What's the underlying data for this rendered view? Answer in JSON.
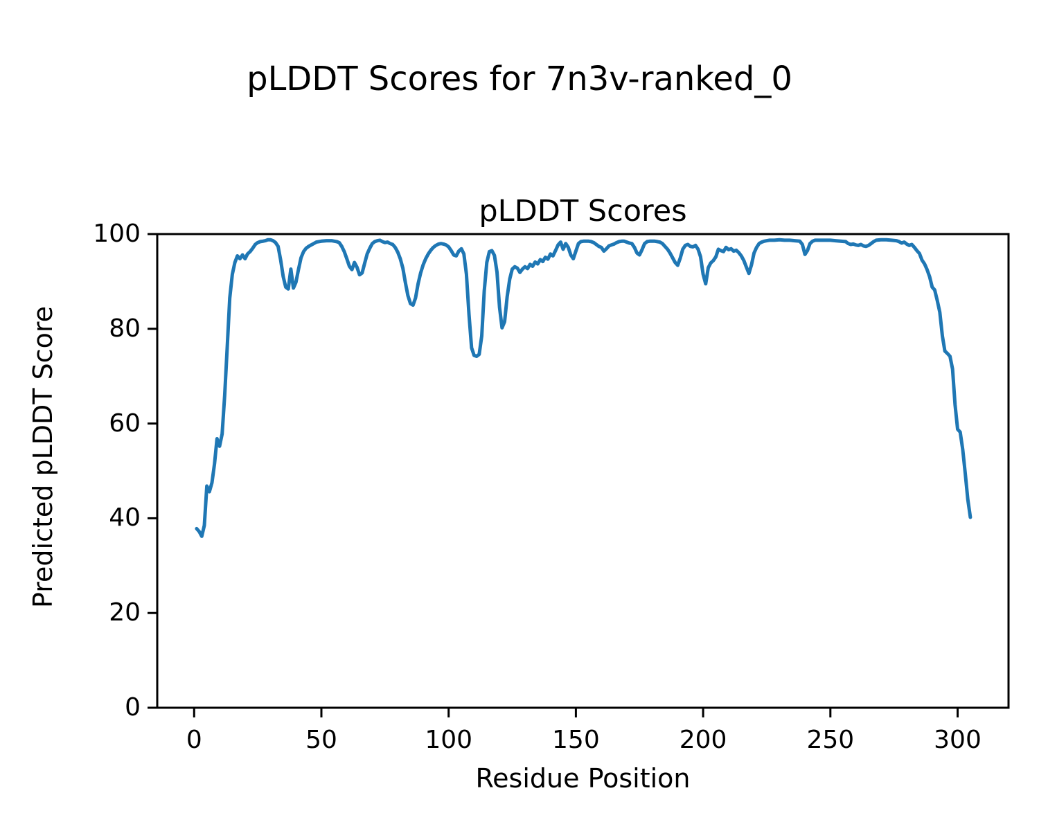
{
  "figure": {
    "suptitle": "pLDDT Scores for 7n3v-ranked_0",
    "axes_title": "pLDDT Scores",
    "xlabel": "Residue Position",
    "ylabel": "Predicted pLDDT Score"
  },
  "colors": {
    "line": "#1f77b4",
    "axis": "#000000",
    "background": "#ffffff"
  },
  "chart_data": {
    "type": "line",
    "title": "pLDDT Scores",
    "suptitle": "pLDDT Scores for 7n3v-ranked_0",
    "xlabel": "Residue Position",
    "ylabel": "Predicted pLDDT Score",
    "xlim": [
      -14.5,
      320
    ],
    "ylim": [
      0,
      100
    ],
    "x_ticks": [
      0,
      50,
      100,
      150,
      200,
      250,
      300
    ],
    "y_ticks": [
      0,
      20,
      40,
      60,
      80,
      100
    ],
    "grid": false,
    "legend": false,
    "line_color": "#1f77b4",
    "line_width": 5,
    "series": [
      {
        "name": "pLDDT",
        "x": [
          1,
          2,
          3,
          4,
          5,
          6,
          7,
          8,
          9,
          10,
          11,
          12,
          13,
          14,
          15,
          16,
          17,
          18,
          19,
          20,
          21,
          22,
          23,
          24,
          25,
          26,
          27,
          28,
          29,
          30,
          31,
          32,
          33,
          34,
          35,
          36,
          37,
          38,
          39,
          40,
          41,
          42,
          43,
          44,
          45,
          46,
          47,
          48,
          50,
          52,
          54,
          56,
          57,
          58,
          59,
          60,
          61,
          62,
          63,
          64,
          65,
          66,
          67,
          68,
          69,
          70,
          71,
          72,
          73,
          74,
          75,
          76,
          77,
          78,
          79,
          80,
          81,
          82,
          83,
          84,
          85,
          86,
          87,
          88,
          89,
          90,
          91,
          92,
          93,
          94,
          95,
          96,
          97,
          98,
          99,
          100,
          101,
          102,
          103,
          104,
          105,
          106,
          107,
          108,
          109,
          110,
          111,
          112,
          113,
          114,
          115,
          116,
          117,
          118,
          119,
          120,
          121,
          122,
          123,
          124,
          125,
          126,
          127,
          128,
          129,
          130,
          131,
          132,
          133,
          134,
          135,
          136,
          137,
          138,
          139,
          140,
          141,
          142,
          143,
          144,
          145,
          146,
          147,
          148,
          149,
          150,
          151,
          152,
          153,
          154,
          155,
          156,
          157,
          158,
          159,
          160,
          161,
          162,
          163,
          164,
          165,
          166,
          167,
          168,
          169,
          170,
          171,
          172,
          173,
          174,
          175,
          176,
          177,
          178,
          179,
          180,
          181,
          182,
          183,
          184,
          185,
          186,
          187,
          188,
          189,
          190,
          191,
          192,
          193,
          194,
          195,
          196,
          197,
          198,
          199,
          200,
          201,
          202,
          203,
          204,
          205,
          206,
          207,
          208,
          209,
          210,
          211,
          212,
          213,
          214,
          215,
          216,
          217,
          218,
          219,
          220,
          221,
          222,
          223,
          224,
          225,
          226,
          228,
          230,
          232,
          234,
          236,
          238,
          239,
          240,
          241,
          242,
          243,
          244,
          246,
          248,
          250,
          252,
          254,
          256,
          257,
          258,
          259,
          260,
          261,
          262,
          263,
          264,
          265,
          266,
          267,
          268,
          270,
          272,
          274,
          276,
          277,
          278,
          279,
          280,
          281,
          282,
          283,
          284,
          285,
          286,
          287,
          288,
          289,
          290,
          291,
          292,
          293,
          294,
          295,
          296,
          297,
          298,
          299,
          300,
          301,
          302,
          303,
          304,
          305
        ],
        "y": [
          37.8,
          37.2,
          36.2,
          38.5,
          46.8,
          45.6,
          47.5,
          51.5,
          56.8,
          55.2,
          57.8,
          66,
          76,
          86.5,
          91.5,
          94,
          95.4,
          94.8,
          95.6,
          94.8,
          95.8,
          96.3,
          97,
          97.8,
          98.2,
          98.4,
          98.5,
          98.6,
          98.8,
          98.8,
          98.6,
          98.2,
          97.4,
          94.5,
          91,
          88.8,
          88.4,
          92.6,
          88.6,
          89.8,
          92.5,
          95,
          96.3,
          97,
          97.4,
          97.7,
          98,
          98.3,
          98.5,
          98.6,
          98.6,
          98.4,
          98.2,
          97.4,
          96.3,
          94.8,
          93.2,
          92.5,
          94,
          93,
          91.4,
          91.8,
          93.8,
          95.8,
          97,
          98,
          98.4,
          98.6,
          98.7,
          98.4,
          98.2,
          98.3,
          98,
          97.8,
          97.2,
          96.2,
          94.8,
          92.8,
          89.8,
          87,
          85.3,
          85,
          86.5,
          89.5,
          91.8,
          93.5,
          94.8,
          95.8,
          96.6,
          97.2,
          97.6,
          97.9,
          98,
          97.9,
          97.7,
          97.3,
          96.5,
          95.6,
          95.4,
          96.4,
          96.9,
          95.8,
          91.5,
          83,
          76,
          74.4,
          74.2,
          74.6,
          78.5,
          88,
          94,
          96.3,
          96.5,
          95.5,
          92,
          84.5,
          80.2,
          81.5,
          86.8,
          90.5,
          92.6,
          93.1,
          92.8,
          91.9,
          92.6,
          93.1,
          92.7,
          93.6,
          93.2,
          94.1,
          93.7,
          94.6,
          94.2,
          95.1,
          94.7,
          95.8,
          95.4,
          96.5,
          97.7,
          98.3,
          96.8,
          98,
          97.2,
          95.6,
          94.8,
          96.4,
          98,
          98.4,
          98.5,
          98.5,
          98.5,
          98.4,
          98.2,
          97.8,
          97.4,
          97.2,
          96.4,
          96.9,
          97.5,
          97.7,
          97.9,
          98.2,
          98.4,
          98.5,
          98.5,
          98.3,
          98.1,
          98,
          97.2,
          96,
          95.6,
          96.7,
          98,
          98.4,
          98.5,
          98.5,
          98.5,
          98.4,
          98.3,
          98,
          97.4,
          96.8,
          96,
          95,
          94,
          93.4,
          94.9,
          96.8,
          97.6,
          97.8,
          97.4,
          97.3,
          97.6,
          96.8,
          95.2,
          91.5,
          89.5,
          92.9,
          93.9,
          94.4,
          95.2,
          96.8,
          96.5,
          96.3,
          97.2,
          96.7,
          96.9,
          96.4,
          96.6,
          96.1,
          95.4,
          94.4,
          93,
          91.7,
          93.5,
          96,
          97.2,
          98,
          98.3,
          98.5,
          98.6,
          98.7,
          98.7,
          98.8,
          98.7,
          98.7,
          98.6,
          98.5,
          97.8,
          95.7,
          96.5,
          98,
          98.5,
          98.7,
          98.7,
          98.7,
          98.7,
          98.6,
          98.5,
          98.4,
          98,
          97.8,
          97.9,
          97.7,
          97.6,
          97.8,
          97.5,
          97.4,
          97.6,
          98,
          98.4,
          98.7,
          98.8,
          98.8,
          98.7,
          98.6,
          98.4,
          98.1,
          98.3,
          97.9,
          97.6,
          97.8,
          97.2,
          96.5,
          95.9,
          94.5,
          93.7,
          92.5,
          91,
          88.8,
          88.2,
          86,
          83.5,
          78.5,
          75.3,
          74.8,
          74.2,
          71.5,
          64,
          58.8,
          58.2,
          54.5,
          49.5,
          44,
          40.2
        ]
      }
    ]
  }
}
